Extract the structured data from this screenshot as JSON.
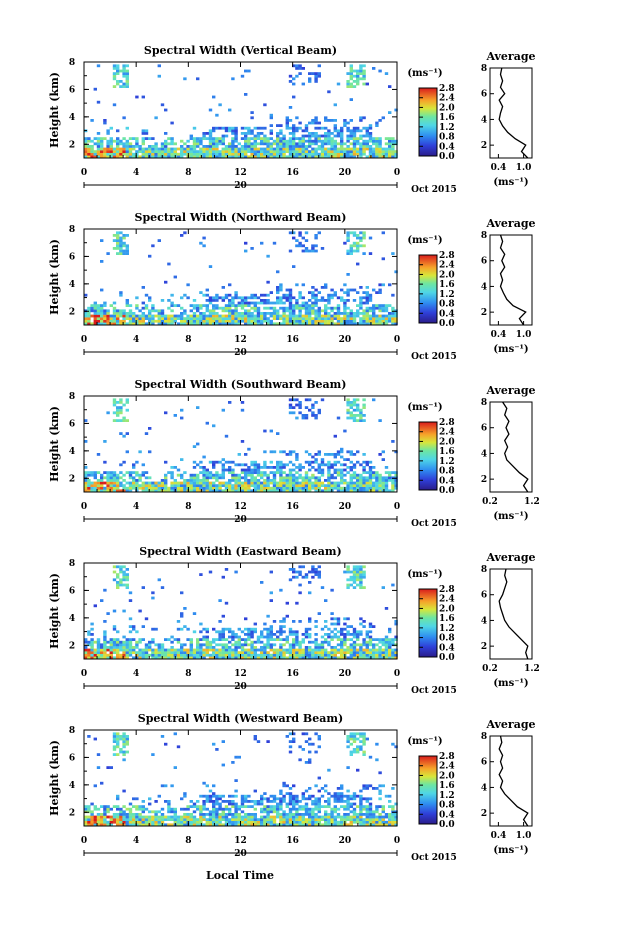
{
  "figure": {
    "xaxis_label": "Local Time",
    "date_label": "Oct 2015",
    "day_label": "20",
    "avg_title": "Average",
    "avg_xunit": "(ms⁻¹)",
    "colorbar_unit": "(ms⁻¹)",
    "y_label": "Height (km)"
  },
  "chart_data": [
    {
      "type": "heatmap",
      "title": "Spectral Width (Vertical Beam)",
      "ylabel": "Height (km)",
      "x_ticks": [
        "0",
        "4",
        "8",
        "12",
        "16",
        "20",
        "0"
      ],
      "y_ticks": [
        "2",
        "4",
        "6",
        "8"
      ],
      "xlim": [
        0,
        24
      ],
      "ylim": [
        1,
        8
      ],
      "colorbar": {
        "unit": "(ms⁻¹)",
        "ticks": [
          "2.8",
          "2.4",
          "2.0",
          "1.6",
          "1.2",
          "0.8",
          "0.4",
          "0.0"
        ],
        "range": [
          0,
          2.8
        ]
      },
      "avg_panel": {
        "title": "Average",
        "x_ticks": [
          "0.4",
          "1.0"
        ],
        "xlim": [
          0.2,
          1.2
        ],
        "ylim": [
          1,
          8
        ],
        "y_ticks": [
          "2",
          "4",
          "6",
          "8"
        ],
        "profile": [
          [
            1.0,
            1.1
          ],
          [
            1.5,
            0.95
          ],
          [
            2.0,
            1.05
          ],
          [
            2.5,
            0.8
          ],
          [
            3.0,
            0.62
          ],
          [
            3.5,
            0.5
          ],
          [
            4.0,
            0.42
          ],
          [
            4.5,
            0.45
          ],
          [
            5.0,
            0.5
          ],
          [
            5.5,
            0.42
          ],
          [
            6.0,
            0.55
          ],
          [
            6.5,
            0.45
          ],
          [
            7.0,
            0.5
          ],
          [
            7.5,
            0.45
          ],
          [
            8.0,
            0.48
          ]
        ]
      }
    },
    {
      "type": "heatmap",
      "title": "Spectral Width (Northward Beam)",
      "ylabel": "Height (km)",
      "x_ticks": [
        "0",
        "4",
        "8",
        "12",
        "16",
        "20",
        "0"
      ],
      "y_ticks": [
        "2",
        "4",
        "6",
        "8"
      ],
      "xlim": [
        0,
        24
      ],
      "ylim": [
        1,
        8
      ],
      "colorbar": {
        "unit": "(ms⁻¹)",
        "ticks": [
          "2.8",
          "2.4",
          "2.0",
          "1.6",
          "1.2",
          "0.8",
          "0.4",
          "0.0"
        ],
        "range": [
          0,
          2.8
        ]
      },
      "avg_panel": {
        "title": "Average",
        "x_ticks": [
          "0.4",
          "1.0"
        ],
        "xlim": [
          0.2,
          1.2
        ],
        "ylim": [
          1,
          8
        ],
        "y_ticks": [
          "2",
          "4",
          "6",
          "8"
        ],
        "profile": [
          [
            1.0,
            1.0
          ],
          [
            1.5,
            0.9
          ],
          [
            2.0,
            1.05
          ],
          [
            2.5,
            0.75
          ],
          [
            3.0,
            0.6
          ],
          [
            3.5,
            0.52
          ],
          [
            4.0,
            0.45
          ],
          [
            4.5,
            0.5
          ],
          [
            5.0,
            0.45
          ],
          [
            5.5,
            0.55
          ],
          [
            6.0,
            0.48
          ],
          [
            6.5,
            0.55
          ],
          [
            7.0,
            0.45
          ],
          [
            7.5,
            0.5
          ],
          [
            8.0,
            0.45
          ]
        ]
      }
    },
    {
      "type": "heatmap",
      "title": "Spectral Width (Southward Beam)",
      "ylabel": "Height (km)",
      "x_ticks": [
        "0",
        "4",
        "8",
        "12",
        "16",
        "20",
        "0"
      ],
      "y_ticks": [
        "2",
        "4",
        "6",
        "8"
      ],
      "xlim": [
        0,
        24
      ],
      "ylim": [
        1,
        8
      ],
      "colorbar": {
        "unit": "(ms⁻¹)",
        "ticks": [
          "2.8",
          "2.4",
          "2.0",
          "1.6",
          "1.2",
          "0.8",
          "0.4",
          "0.0"
        ],
        "range": [
          0,
          2.8
        ]
      },
      "avg_panel": {
        "title": "Average",
        "x_ticks": [
          "0.2",
          "1.2"
        ],
        "xlim": [
          0.2,
          1.2
        ],
        "ylim": [
          1,
          8
        ],
        "y_ticks": [
          "2",
          "4",
          "6",
          "8"
        ],
        "profile": [
          [
            1.0,
            1.1
          ],
          [
            1.5,
            1.0
          ],
          [
            2.0,
            1.1
          ],
          [
            2.5,
            0.9
          ],
          [
            3.0,
            0.75
          ],
          [
            3.5,
            0.6
          ],
          [
            4.0,
            0.55
          ],
          [
            4.5,
            0.62
          ],
          [
            5.0,
            0.55
          ],
          [
            5.5,
            0.65
          ],
          [
            6.0,
            0.58
          ],
          [
            6.5,
            0.65
          ],
          [
            7.0,
            0.55
          ],
          [
            7.5,
            0.6
          ],
          [
            8.0,
            0.5
          ]
        ]
      }
    },
    {
      "type": "heatmap",
      "title": "Spectral Width (Eastward Beam)",
      "ylabel": "Height (km)",
      "x_ticks": [
        "0",
        "4",
        "8",
        "12",
        "16",
        "20",
        "0"
      ],
      "y_ticks": [
        "2",
        "4",
        "6",
        "8"
      ],
      "xlim": [
        0,
        24
      ],
      "ylim": [
        1,
        8
      ],
      "colorbar": {
        "unit": "(ms⁻¹)",
        "ticks": [
          "2.8",
          "2.4",
          "2.0",
          "1.6",
          "1.2",
          "0.8",
          "0.4",
          "0.0"
        ],
        "range": [
          0,
          2.8
        ]
      },
      "avg_panel": {
        "title": "Average",
        "x_ticks": [
          "0.2",
          "1.2"
        ],
        "xlim": [
          0.2,
          1.2
        ],
        "ylim": [
          1,
          8
        ],
        "y_ticks": [
          "2",
          "4",
          "6",
          "8"
        ],
        "profile": [
          [
            1.0,
            1.1
          ],
          [
            1.5,
            1.05
          ],
          [
            2.0,
            1.1
          ],
          [
            2.5,
            0.95
          ],
          [
            3.0,
            0.8
          ],
          [
            3.5,
            0.65
          ],
          [
            4.0,
            0.55
          ],
          [
            4.5,
            0.5
          ],
          [
            5.0,
            0.45
          ],
          [
            5.5,
            0.42
          ],
          [
            6.0,
            0.5
          ],
          [
            6.5,
            0.55
          ],
          [
            7.0,
            0.6
          ],
          [
            7.5,
            0.55
          ],
          [
            8.0,
            0.58
          ]
        ]
      }
    },
    {
      "type": "heatmap",
      "title": "Spectral Width (Westward Beam)",
      "ylabel": "Height (km)",
      "x_ticks": [
        "0",
        "4",
        "8",
        "12",
        "16",
        "20",
        "0"
      ],
      "y_ticks": [
        "2",
        "4",
        "6",
        "8"
      ],
      "xlim": [
        0,
        24
      ],
      "ylim": [
        1,
        8
      ],
      "colorbar": {
        "unit": "(ms⁻¹)",
        "ticks": [
          "2.8",
          "2.4",
          "2.0",
          "1.6",
          "1.2",
          "0.8",
          "0.4",
          "0.0"
        ],
        "range": [
          0,
          2.8
        ]
      },
      "avg_panel": {
        "title": "Average",
        "x_ticks": [
          "0.4",
          "1.0"
        ],
        "xlim": [
          0.2,
          1.2
        ],
        "ylim": [
          1,
          8
        ],
        "y_ticks": [
          "2",
          "4",
          "6",
          "8"
        ],
        "profile": [
          [
            1.0,
            1.1
          ],
          [
            1.5,
            1.0
          ],
          [
            2.0,
            1.1
          ],
          [
            2.5,
            0.85
          ],
          [
            3.0,
            0.7
          ],
          [
            3.5,
            0.55
          ],
          [
            4.0,
            0.45
          ],
          [
            4.5,
            0.5
          ],
          [
            5.0,
            0.42
          ],
          [
            5.5,
            0.5
          ],
          [
            6.0,
            0.45
          ],
          [
            6.5,
            0.5
          ],
          [
            7.0,
            0.42
          ],
          [
            7.5,
            0.48
          ],
          [
            8.0,
            0.45
          ]
        ]
      }
    }
  ]
}
